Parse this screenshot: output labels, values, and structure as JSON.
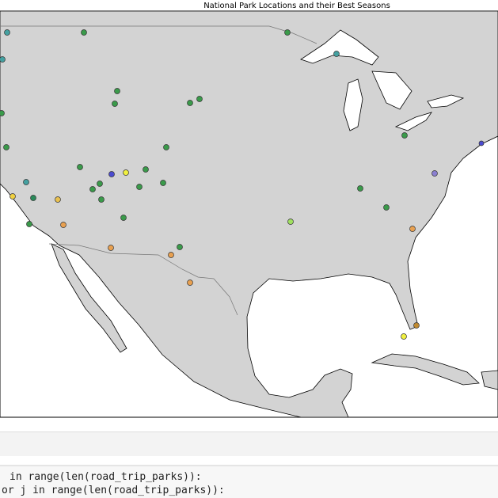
{
  "title": "National Park Locations and their Best Seasons",
  "code": {
    "lines": [
      "in range(len(road_trip_parks)):",
      "or j in range(len(road_trip_parks)):"
    ]
  }
}
